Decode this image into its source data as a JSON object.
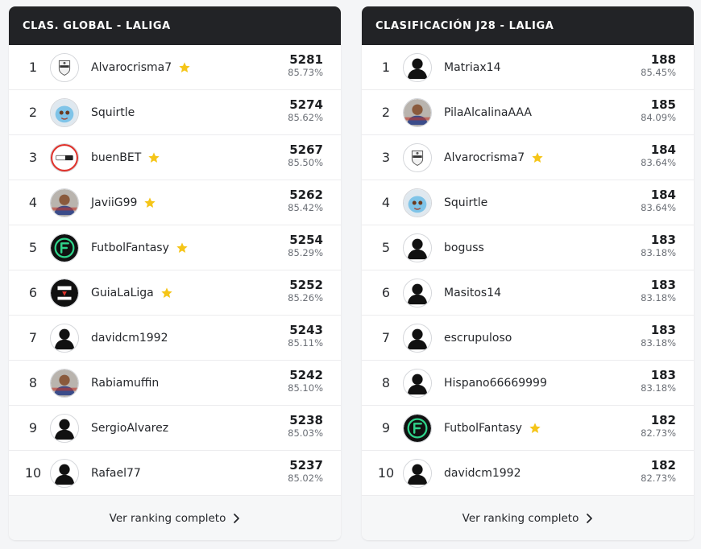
{
  "colors": {
    "header_bg": "#222326",
    "star": "#f5c518",
    "footer_bg": "#f6f7f8"
  },
  "panels": [
    {
      "title": "CLAS. GLOBAL - LALIGA",
      "footer_label": "Ver ranking completo",
      "rows": [
        {
          "pos": "1",
          "name": "Alvarocrisma7",
          "star": true,
          "points": "5281",
          "pct": "85.73%",
          "avatar": "crest-avatar"
        },
        {
          "pos": "2",
          "name": "Squirtle",
          "star": false,
          "points": "5274",
          "pct": "85.62%",
          "avatar": "squirtle-avatar"
        },
        {
          "pos": "3",
          "name": "buenBET",
          "star": true,
          "points": "5267",
          "pct": "85.50%",
          "avatar": "buenbet-logo-avatar"
        },
        {
          "pos": "4",
          "name": "JaviiG99",
          "star": true,
          "points": "5262",
          "pct": "85.42%",
          "avatar": "photo-avatar"
        },
        {
          "pos": "5",
          "name": "FutbolFantasy",
          "star": true,
          "points": "5254",
          "pct": "85.29%",
          "avatar": "futbolfantasy-logo-avatar"
        },
        {
          "pos": "6",
          "name": "GuiaLaLiga",
          "star": true,
          "points": "5252",
          "pct": "85.26%",
          "avatar": "guia-fantasy-logo-avatar"
        },
        {
          "pos": "7",
          "name": "davidcm1992",
          "star": false,
          "points": "5243",
          "pct": "85.11%",
          "avatar": "default-user-avatar"
        },
        {
          "pos": "8",
          "name": "Rabiamuffin",
          "star": false,
          "points": "5242",
          "pct": "85.10%",
          "avatar": "photo-avatar"
        },
        {
          "pos": "9",
          "name": "SergioAlvarez",
          "star": false,
          "points": "5238",
          "pct": "85.03%",
          "avatar": "default-user-avatar"
        },
        {
          "pos": "10",
          "name": "Rafael77",
          "star": false,
          "points": "5237",
          "pct": "85.02%",
          "avatar": "default-user-avatar"
        }
      ]
    },
    {
      "title": "CLASIFICACIÓN J28 - LALIGA",
      "footer_label": "Ver ranking completo",
      "rows": [
        {
          "pos": "1",
          "name": "Matriax14",
          "star": false,
          "points": "188",
          "pct": "85.45%",
          "avatar": "default-user-avatar"
        },
        {
          "pos": "2",
          "name": "PilaAlcalinaAAA",
          "star": false,
          "points": "185",
          "pct": "84.09%",
          "avatar": "photo-avatar"
        },
        {
          "pos": "3",
          "name": "Alvarocrisma7",
          "star": true,
          "points": "184",
          "pct": "83.64%",
          "avatar": "crest-avatar"
        },
        {
          "pos": "4",
          "name": "Squirtle",
          "star": false,
          "points": "184",
          "pct": "83.64%",
          "avatar": "squirtle-avatar"
        },
        {
          "pos": "5",
          "name": "boguss",
          "star": false,
          "points": "183",
          "pct": "83.18%",
          "avatar": "default-user-avatar"
        },
        {
          "pos": "6",
          "name": "Masitos14",
          "star": false,
          "points": "183",
          "pct": "83.18%",
          "avatar": "default-user-avatar"
        },
        {
          "pos": "7",
          "name": "escrupuloso",
          "star": false,
          "points": "183",
          "pct": "83.18%",
          "avatar": "default-user-avatar"
        },
        {
          "pos": "8",
          "name": "Hispano66669999",
          "star": false,
          "points": "183",
          "pct": "83.18%",
          "avatar": "default-user-avatar"
        },
        {
          "pos": "9",
          "name": "FutbolFantasy",
          "star": true,
          "points": "182",
          "pct": "82.73%",
          "avatar": "futbolfantasy-logo-avatar"
        },
        {
          "pos": "10",
          "name": "davidcm1992",
          "star": false,
          "points": "182",
          "pct": "82.73%",
          "avatar": "default-user-avatar"
        }
      ]
    }
  ]
}
